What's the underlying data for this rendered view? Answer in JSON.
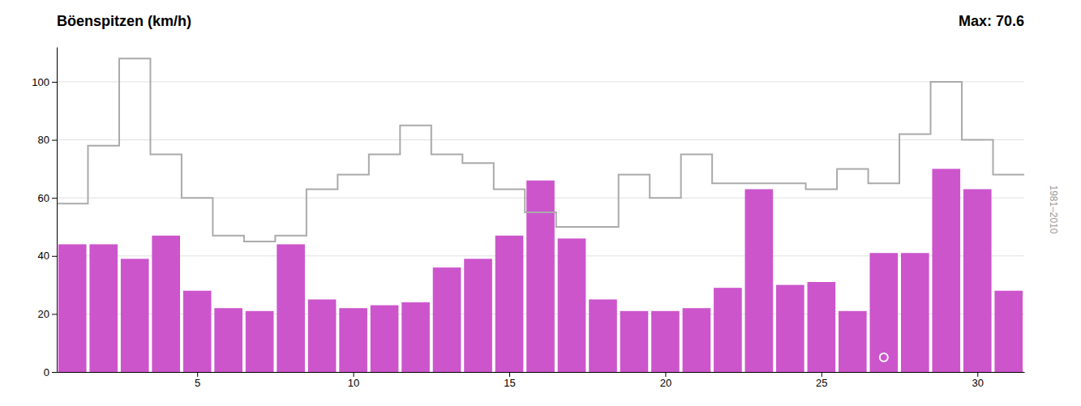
{
  "chart_data": {
    "type": "bar",
    "title": "Böenspitzen (km/h)",
    "annotations": [
      "Max: 70.6",
      "1981–2010"
    ],
    "x": [
      1,
      2,
      3,
      4,
      5,
      6,
      7,
      8,
      9,
      10,
      11,
      12,
      13,
      14,
      15,
      16,
      17,
      18,
      19,
      20,
      21,
      22,
      23,
      24,
      25,
      26,
      27,
      28,
      29,
      30,
      31
    ],
    "xlim": [
      0.5,
      31.5
    ],
    "xticks": [
      5,
      10,
      15,
      20,
      25,
      30
    ],
    "ylim": [
      0,
      112
    ],
    "yticks": [
      0,
      20,
      40,
      60,
      80,
      100
    ],
    "grid": true,
    "series": [
      {
        "type": "bar",
        "color": "#cc55cc",
        "values": [
          44,
          44,
          39,
          47,
          28,
          22,
          21,
          44,
          25,
          22,
          23,
          24,
          36,
          39,
          47,
          66,
          46,
          25,
          21,
          21,
          22,
          29,
          63,
          30,
          31,
          21,
          41,
          41,
          70,
          63,
          28
        ]
      },
      {
        "type": "line",
        "color": "#aaaaaa",
        "x": [
          0.5,
          1.5,
          1.5,
          2.5,
          2.5,
          3.5,
          3.5,
          4.5,
          4.5,
          5.5,
          5.5,
          6.5,
          6.5,
          7.5,
          7.5,
          8.5,
          8.5,
          9.5,
          9.5,
          10.5,
          10.5,
          11.5,
          11.5,
          12.5,
          12.5,
          13.5,
          13.5,
          14.5,
          14.5,
          15.5,
          15.5,
          16.5,
          16.5,
          17.5,
          17.5,
          18.5,
          18.5,
          19.5,
          19.5,
          20.5,
          20.5,
          21.5,
          21.5,
          22.5,
          22.5,
          23.5,
          23.5,
          24.5,
          24.5,
          25.5,
          25.5,
          26.5,
          26.5,
          27.5,
          27.5,
          28.5,
          28.5,
          29.5,
          29.5,
          30.5,
          30.5,
          31.5
        ],
        "values": [
          58,
          58,
          78,
          78,
          108,
          108,
          75,
          75,
          60,
          60,
          47,
          47,
          45,
          45,
          47,
          47,
          63,
          63,
          68,
          68,
          75,
          75,
          85,
          85,
          75,
          75,
          72,
          72,
          63,
          63,
          55,
          55,
          50,
          50,
          50,
          50,
          68,
          68,
          60,
          60,
          75,
          75,
          65,
          65,
          65,
          65,
          65,
          65,
          63,
          63,
          70,
          70,
          65,
          65,
          82,
          82,
          100,
          100,
          80,
          80,
          68,
          68
        ]
      },
      {
        "type": "scatter",
        "color": "#ffffff",
        "marker": "circle",
        "x": [
          27
        ],
        "values": [
          5
        ]
      }
    ]
  }
}
